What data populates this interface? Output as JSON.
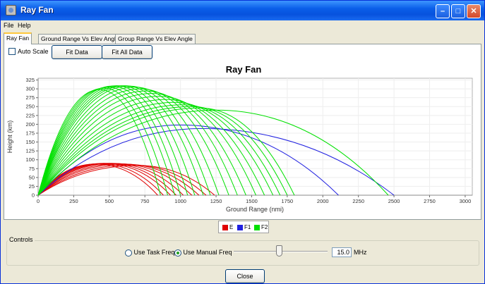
{
  "window": {
    "title": "Ray Fan"
  },
  "menu": [
    "File",
    "Help"
  ],
  "tabs": [
    "Ray Fan",
    "Ground Range Vs Elev Angle",
    "Group Range Vs Elev Angle"
  ],
  "toolbar": {
    "auto_scale_label": "Auto Scale",
    "fit_data_label": "Fit Data",
    "fit_all_data_label": "Fit All Data"
  },
  "chart_data": {
    "type": "line",
    "title": "Ray Fan",
    "xlabel": "Ground Range (nmi)",
    "ylabel": "Height (km)",
    "xlim": [
      0,
      3050
    ],
    "ylim": [
      0,
      330
    ],
    "xticks": [
      "0",
      "250",
      "500",
      "750",
      "1000",
      "1250",
      "1500",
      "1750",
      "2000",
      "2250",
      "2500",
      "2750",
      "3000"
    ],
    "yticks": [
      "0",
      "25",
      "50",
      "75",
      "100",
      "125",
      "150",
      "175",
      "200",
      "225",
      "250",
      "275",
      "300",
      "325"
    ],
    "grid": true,
    "legend": "bottom-center",
    "series": [
      {
        "name": "E",
        "color": "#e00000",
        "rays": [
          [
            400,
            88,
            840
          ],
          [
            430,
            89,
            880
          ],
          [
            460,
            90,
            930
          ],
          [
            490,
            90,
            970
          ],
          [
            520,
            90,
            1020
          ],
          [
            560,
            89,
            1080
          ],
          [
            600,
            88,
            1130
          ],
          [
            650,
            86,
            1180
          ],
          [
            700,
            84,
            1240
          ]
        ]
      },
      {
        "name": "F1",
        "color": "#2020e0",
        "rays": [
          [
            1000,
            198,
            2110
          ],
          [
            1150,
            188,
            2500
          ]
        ]
      },
      {
        "name": "F2",
        "color": "#00e000",
        "rays": [
          [
            430,
            298,
            860
          ],
          [
            460,
            302,
            910
          ],
          [
            490,
            305,
            960
          ],
          [
            520,
            308,
            1000
          ],
          [
            550,
            309,
            1050
          ],
          [
            580,
            309,
            1100
          ],
          [
            610,
            309,
            1160
          ],
          [
            640,
            308,
            1210
          ],
          [
            680,
            305,
            1270
          ],
          [
            720,
            300,
            1340
          ],
          [
            760,
            294,
            1400
          ],
          [
            800,
            287,
            1460
          ],
          [
            850,
            279,
            1530
          ],
          [
            900,
            270,
            1590
          ],
          [
            960,
            262,
            1650
          ],
          [
            1020,
            255,
            1700
          ],
          [
            1080,
            250,
            1750
          ],
          [
            1140,
            246,
            1800
          ],
          [
            1250,
            240,
            2460
          ]
        ]
      }
    ]
  },
  "legend": [
    {
      "name": "E",
      "color": "#e00000"
    },
    {
      "name": "F1",
      "color": "#2020e0"
    },
    {
      "name": "F2",
      "color": "#00e000"
    }
  ],
  "controls": {
    "title": "Controls",
    "task_freq_label": "Use Task Freq",
    "manual_freq_label": "Use Manual Freq",
    "selected": "manual",
    "frequency": "15.0",
    "unit": "MHz"
  },
  "close_label": "Close"
}
